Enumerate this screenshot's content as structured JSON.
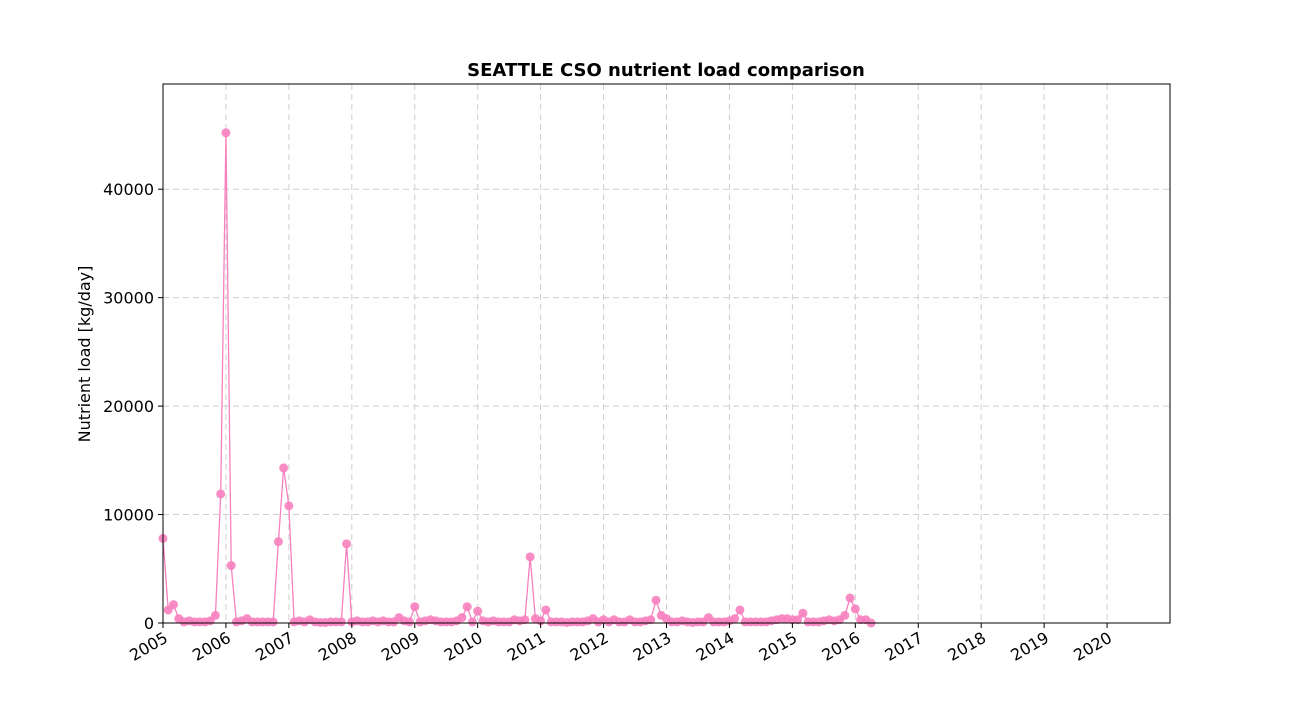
{
  "chart_data": {
    "type": "line",
    "title": "SEATTLE CSO nutrient load comparison",
    "y_label": "Nutrient load [kg/day]",
    "x": [
      "2005-01",
      "2005-02",
      "2005-03",
      "2005-04",
      "2005-05",
      "2005-06",
      "2005-07",
      "2005-08",
      "2005-09",
      "2005-10",
      "2005-11",
      "2005-12",
      "2006-01",
      "2006-02",
      "2006-03",
      "2006-04",
      "2006-05",
      "2006-06",
      "2006-07",
      "2006-08",
      "2006-09",
      "2006-10",
      "2006-11",
      "2006-12",
      "2007-01",
      "2007-02",
      "2007-03",
      "2007-04",
      "2007-05",
      "2007-06",
      "2007-07",
      "2007-08",
      "2007-09",
      "2007-10",
      "2007-11",
      "2007-12",
      "2008-01",
      "2008-02",
      "2008-03",
      "2008-04",
      "2008-05",
      "2008-06",
      "2008-07",
      "2008-08",
      "2008-09",
      "2008-10",
      "2008-11",
      "2008-12",
      "2009-01",
      "2009-02",
      "2009-03",
      "2009-04",
      "2009-05",
      "2009-06",
      "2009-07",
      "2009-08",
      "2009-09",
      "2009-10",
      "2009-11",
      "2009-12",
      "2010-01",
      "2010-02",
      "2010-03",
      "2010-04",
      "2010-05",
      "2010-06",
      "2010-07",
      "2010-08",
      "2010-09",
      "2010-10",
      "2010-11",
      "2010-12",
      "2011-01",
      "2011-02",
      "2011-03",
      "2011-04",
      "2011-05",
      "2011-06",
      "2011-07",
      "2011-08",
      "2011-09",
      "2011-10",
      "2011-11",
      "2011-12",
      "2012-01",
      "2012-02",
      "2012-03",
      "2012-04",
      "2012-05",
      "2012-06",
      "2012-07",
      "2012-08",
      "2012-09",
      "2012-10",
      "2012-11",
      "2012-12",
      "2013-01",
      "2013-02",
      "2013-03",
      "2013-04",
      "2013-05",
      "2013-06",
      "2013-07",
      "2013-08",
      "2013-09",
      "2013-10",
      "2013-11",
      "2013-12",
      "2014-01",
      "2014-02",
      "2014-03",
      "2014-04",
      "2014-05",
      "2014-06",
      "2014-07",
      "2014-08",
      "2014-09",
      "2014-10",
      "2014-11",
      "2014-12",
      "2015-01",
      "2015-02",
      "2015-03",
      "2015-04",
      "2015-05",
      "2015-06",
      "2015-07",
      "2015-08",
      "2015-09",
      "2015-10",
      "2015-11",
      "2015-12",
      "2016-01",
      "2016-02",
      "2016-03",
      "2016-04"
    ],
    "series": [
      {
        "color": "#f781bf",
        "values": [
          7800,
          1200,
          1700,
          400,
          100,
          200,
          100,
          100,
          100,
          200,
          700,
          11900,
          45200,
          5300,
          100,
          200,
          400,
          100,
          100,
          100,
          100,
          100,
          7500,
          14300,
          10800,
          100,
          200,
          100,
          300,
          100,
          50,
          50,
          100,
          100,
          100,
          7300,
          100,
          200,
          100,
          100,
          200,
          100,
          200,
          100,
          100,
          500,
          200,
          100,
          1500,
          100,
          200,
          300,
          200,
          100,
          100,
          100,
          200,
          500,
          1500,
          100,
          1100,
          200,
          100,
          200,
          100,
          100,
          100,
          300,
          200,
          300,
          6100,
          400,
          200,
          1200,
          100,
          100,
          100,
          50,
          100,
          100,
          100,
          200,
          400,
          100,
          300,
          100,
          300,
          100,
          100,
          300,
          100,
          100,
          200,
          300,
          2100,
          700,
          400,
          100,
          100,
          200,
          100,
          50,
          100,
          100,
          500,
          100,
          100,
          100,
          200,
          400,
          1200,
          100,
          100,
          100,
          100,
          100,
          200,
          300,
          400,
          400,
          300,
          300,
          900,
          100,
          100,
          100,
          200,
          300,
          200,
          300,
          700,
          2300,
          1300,
          300,
          300,
          0
        ]
      }
    ],
    "xlim": [
      "2005-01",
      "2021-01"
    ],
    "xticks": [
      2005,
      2006,
      2007,
      2008,
      2009,
      2010,
      2011,
      2012,
      2013,
      2014,
      2015,
      2016,
      2017,
      2018,
      2019,
      2020
    ],
    "ylim": [
      0,
      49700
    ],
    "yticks": [
      0,
      10000,
      20000,
      30000,
      40000
    ],
    "grid": true
  }
}
